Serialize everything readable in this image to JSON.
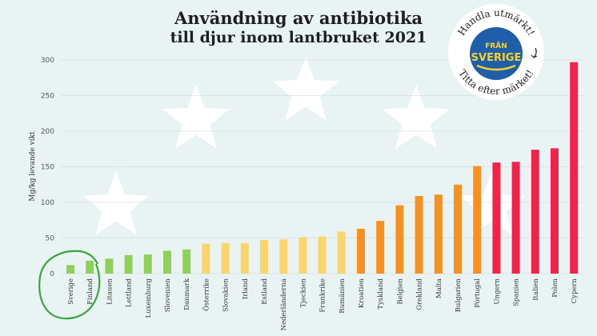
{
  "chart_data": {
    "type": "bar",
    "title": "Användning av antibiotika",
    "subtitle": "till djur inom lantbruket 2021",
    "ylabel": "Mg/kg levande vikt",
    "ylim": [
      0,
      300
    ],
    "yticks": [
      0,
      50,
      100,
      150,
      200,
      250,
      300
    ],
    "grid": true,
    "categories": [
      "Sverige",
      "Finland",
      "Litauen",
      "Lettland",
      "Luxemburg",
      "Slovenien",
      "Danmark",
      "Österrike",
      "Slovakien",
      "Irland",
      "Estland",
      "Nederländerna",
      "Tjeckien",
      "Frankrike",
      "Rumänien",
      "Kroatien",
      "Tyskland",
      "Belgien",
      "Grekland",
      "Malta",
      "Bulgarien",
      "Portugal",
      "Ungern",
      "Spanien",
      "Italien",
      "Polen",
      "Cypern"
    ],
    "values": [
      12,
      18,
      21,
      26,
      27,
      32,
      34,
      42,
      43,
      43,
      47,
      48,
      51,
      52,
      59,
      63,
      74,
      96,
      109,
      111,
      125,
      151,
      156,
      157,
      174,
      176,
      297
    ],
    "bar_colors": [
      "#8fd05a",
      "#8fd05a",
      "#8fd05a",
      "#8fd05a",
      "#8fd05a",
      "#8fd05a",
      "#8fd05a",
      "#fbd46a",
      "#fbd46a",
      "#fbd46a",
      "#fbd46a",
      "#fbd46a",
      "#fbd46a",
      "#fbd46a",
      "#fbd46a",
      "#f7901e",
      "#f7901e",
      "#f7901e",
      "#f7901e",
      "#f7901e",
      "#f7901e",
      "#f7901e",
      "#f2224a",
      "#f2224a",
      "#f2224a",
      "#f2224a",
      "#f2224a"
    ],
    "highlight_category": "Sverige",
    "highlight_color": "#3aa53a"
  },
  "badge": {
    "top_text": "Handla utmärkt!",
    "bottom_text": "Titta efter märket!",
    "logo_line1": "FRÅN",
    "logo_line2": "SVERIGE",
    "logo_blue": "#1f5ea8",
    "logo_yellow": "#f7d12b"
  },
  "colors": {
    "background": "#e9f3f4",
    "stars": "#ffffff"
  }
}
